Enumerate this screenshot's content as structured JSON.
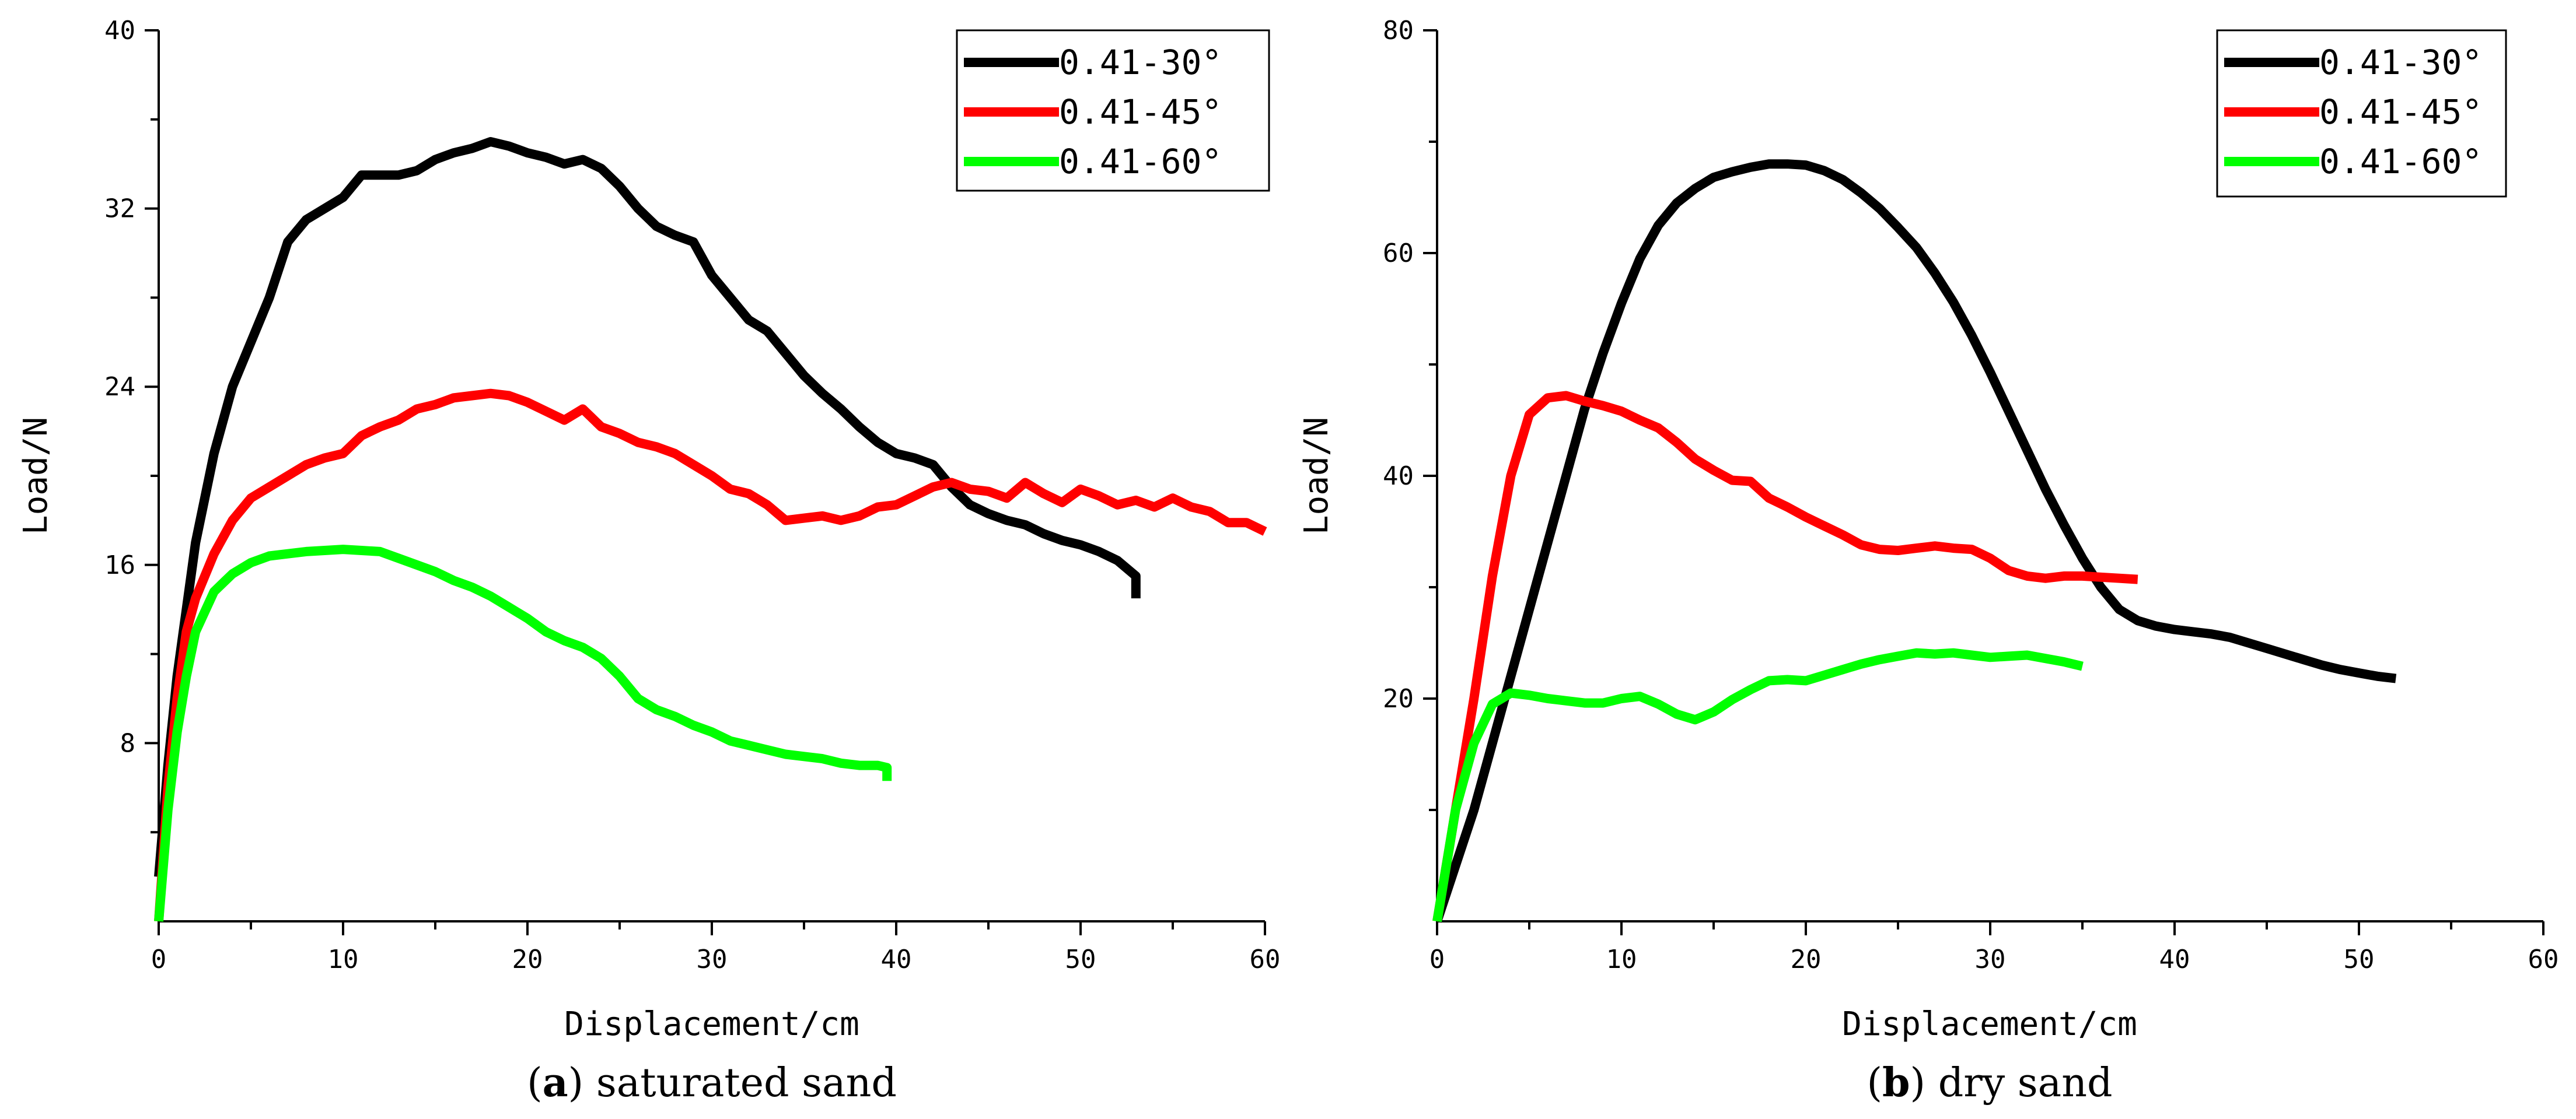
{
  "chart_data": [
    {
      "type": "line",
      "panel": "a",
      "caption_prefix": "(",
      "caption_letter": "a",
      "caption_suffix": ") saturated sand",
      "xlabel": "Displacement/cm",
      "ylabel": "Load/N",
      "xlim": [
        0,
        60
      ],
      "ylim": [
        0,
        40
      ],
      "xticks": [
        0,
        10,
        20,
        30,
        40,
        50,
        60
      ],
      "yticks": [
        8,
        16,
        24,
        32,
        40
      ],
      "legend_position": "top-right",
      "series": [
        {
          "name": "0.41-30°",
          "color": "#000000",
          "x": [
            0,
            0.5,
            1,
            2,
            3,
            4,
            5,
            6,
            7,
            8,
            9,
            10,
            11,
            12,
            13,
            14,
            15,
            16,
            17,
            18,
            19,
            20,
            21,
            22,
            23,
            24,
            25,
            26,
            27,
            28,
            29,
            30,
            31,
            32,
            33,
            34,
            35,
            36,
            37,
            38,
            39,
            40,
            41,
            42,
            43,
            44,
            45,
            46,
            47,
            48,
            49,
            50,
            51,
            52,
            53,
            53
          ],
          "y": [
            2,
            7,
            11,
            17,
            21,
            24,
            26,
            28,
            30.5,
            31.5,
            32,
            32.5,
            33.5,
            33.5,
            33.5,
            33.7,
            34.2,
            34.5,
            34.7,
            35,
            34.8,
            34.5,
            34.3,
            34,
            34.2,
            33.8,
            33,
            32,
            31.2,
            30.8,
            30.5,
            29,
            28,
            27,
            26.5,
            25.5,
            24.5,
            23.7,
            23,
            22.2,
            21.5,
            21,
            20.8,
            20.5,
            19.5,
            18.7,
            18.3,
            18,
            17.8,
            17.4,
            17.1,
            16.9,
            16.6,
            16.2,
            15.5,
            14.5
          ]
        },
        {
          "name": "0.41-45°",
          "color": "#ff0000",
          "x": [
            0,
            0.5,
            1,
            1.5,
            2,
            3,
            4,
            5,
            6,
            7,
            8,
            9,
            10,
            11,
            12,
            13,
            14,
            15,
            16,
            17,
            18,
            19,
            20,
            21,
            22,
            23,
            24,
            25,
            26,
            27,
            28,
            29,
            30,
            31,
            32,
            33,
            34,
            35,
            36,
            37,
            38,
            39,
            40,
            41,
            42,
            43,
            44,
            45,
            46,
            47,
            48,
            49,
            50,
            51,
            52,
            53,
            54,
            55,
            56,
            57,
            58,
            59,
            60
          ],
          "y": [
            0,
            6,
            10,
            13,
            14.5,
            16.5,
            18,
            19,
            19.5,
            20,
            20.5,
            20.8,
            21,
            21.8,
            22.2,
            22.5,
            23,
            23.2,
            23.5,
            23.6,
            23.7,
            23.6,
            23.3,
            22.9,
            22.5,
            23,
            22.2,
            21.9,
            21.5,
            21.3,
            21,
            20.5,
            20,
            19.4,
            19.2,
            18.7,
            18,
            18.1,
            18.2,
            18.0,
            18.2,
            18.6,
            18.7,
            19.1,
            19.5,
            19.7,
            19.4,
            19.3,
            19.0,
            19.7,
            19.2,
            18.8,
            19.4,
            19.1,
            18.7,
            18.9,
            18.6,
            19.0,
            18.6,
            18.4,
            17.9,
            17.9,
            17.5
          ]
        },
        {
          "name": "0.41-60°",
          "color": "#00ff00",
          "x": [
            0,
            0.5,
            1,
            1.5,
            2,
            3,
            4,
            5,
            6,
            7,
            8,
            9,
            10,
            11,
            12,
            13,
            14,
            15,
            16,
            17,
            18,
            19,
            20,
            21,
            22,
            23,
            24,
            25,
            26,
            27,
            28,
            29,
            30,
            31,
            32,
            33,
            34,
            35,
            36,
            37,
            38,
            39,
            39.5,
            39.5
          ],
          "y": [
            0,
            5,
            8.5,
            11,
            13,
            14.8,
            15.6,
            16.1,
            16.4,
            16.5,
            16.6,
            16.65,
            16.7,
            16.65,
            16.6,
            16.3,
            16.0,
            15.7,
            15.3,
            15.0,
            14.6,
            14.1,
            13.6,
            13.0,
            12.6,
            12.3,
            11.8,
            11.0,
            10.0,
            9.5,
            9.2,
            8.8,
            8.5,
            8.1,
            7.9,
            7.7,
            7.5,
            7.4,
            7.3,
            7.1,
            7.0,
            7.0,
            6.9,
            6.3
          ]
        }
      ]
    },
    {
      "type": "line",
      "panel": "b",
      "caption_prefix": "(",
      "caption_letter": "b",
      "caption_suffix": ") dry sand",
      "xlabel": "Displacement/cm",
      "ylabel": "Load/N",
      "xlim": [
        0,
        60
      ],
      "ylim": [
        0,
        80
      ],
      "xticks": [
        0,
        10,
        20,
        30,
        40,
        50,
        60
      ],
      "yticks": [
        20,
        40,
        60,
        80
      ],
      "legend_position": "top-right",
      "series": [
        {
          "name": "0.41-30°",
          "color": "#000000",
          "x": [
            0,
            1,
            2,
            3,
            4,
            5,
            6,
            7,
            8,
            9,
            10,
            11,
            12,
            13,
            14,
            15,
            16,
            17,
            18,
            19,
            20,
            21,
            22,
            23,
            24,
            25,
            26,
            27,
            28,
            29,
            30,
            31,
            32,
            33,
            34,
            35,
            36,
            37,
            38,
            39,
            40,
            41,
            42,
            43,
            44,
            45,
            46,
            47,
            48,
            49,
            50,
            51,
            52
          ],
          "y": [
            0,
            5,
            10,
            16,
            22,
            28,
            34,
            40,
            46,
            51,
            55.5,
            59.5,
            62.5,
            64.5,
            65.8,
            66.8,
            67.3,
            67.7,
            68,
            68,
            67.9,
            67.4,
            66.6,
            65.4,
            64,
            62.3,
            60.5,
            58.2,
            55.6,
            52.6,
            49.3,
            45.8,
            42.3,
            38.8,
            35.6,
            32.6,
            30,
            28,
            27,
            26.5,
            26.2,
            26,
            25.8,
            25.5,
            25,
            24.5,
            24,
            23.5,
            23,
            22.6,
            22.3,
            22.0,
            21.8
          ]
        },
        {
          "name": "0.41-45°",
          "color": "#ff0000",
          "x": [
            0,
            1,
            2,
            3,
            4,
            5,
            6,
            7,
            8,
            9,
            10,
            11,
            12,
            13,
            14,
            15,
            16,
            17,
            18,
            19,
            20,
            21,
            22,
            23,
            24,
            25,
            26,
            27,
            28,
            29,
            30,
            31,
            32,
            33,
            34,
            35,
            36,
            37,
            38
          ],
          "y": [
            0,
            10,
            20,
            31,
            40,
            45.5,
            47,
            47.2,
            46.7,
            46.3,
            45.8,
            45,
            44.3,
            43,
            41.5,
            40.5,
            39.6,
            39.5,
            38,
            37.2,
            36.3,
            35.5,
            34.7,
            33.8,
            33.4,
            33.3,
            33.5,
            33.7,
            33.5,
            33.4,
            32.6,
            31.5,
            31.0,
            30.8,
            31.0,
            31.0,
            30.9,
            30.8,
            30.7
          ]
        },
        {
          "name": "0.41-60°",
          "color": "#00ff00",
          "x": [
            0,
            1,
            2,
            3,
            4,
            5,
            6,
            7,
            8,
            9,
            10,
            11,
            12,
            13,
            14,
            15,
            16,
            17,
            18,
            19,
            20,
            21,
            22,
            23,
            24,
            25,
            26,
            27,
            28,
            29,
            30,
            31,
            32,
            33,
            34,
            35
          ],
          "y": [
            0,
            10,
            16,
            19.5,
            20.5,
            20.3,
            20,
            19.8,
            19.6,
            19.6,
            20,
            20.2,
            19.5,
            18.6,
            18.1,
            18.8,
            19.9,
            20.8,
            21.6,
            21.7,
            21.6,
            22.1,
            22.6,
            23.1,
            23.5,
            23.8,
            24.1,
            24.0,
            24.1,
            23.9,
            23.7,
            23.8,
            23.9,
            23.6,
            23.3,
            22.9
          ]
        }
      ]
    }
  ]
}
